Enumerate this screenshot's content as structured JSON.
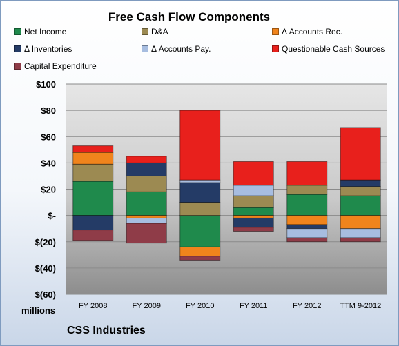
{
  "chart_data": {
    "type": "bar",
    "stacked": true,
    "title": "Free Cash Flow Components",
    "xlabel": "",
    "ylabel": "",
    "unit_label": "millions",
    "company": "CSS Industries",
    "ylim": [
      -60,
      100
    ],
    "yticks": [
      100,
      80,
      60,
      40,
      20,
      0,
      -20,
      -40,
      -60
    ],
    "ytick_labels": [
      "$100",
      "$80",
      "$60",
      "$40",
      "$20",
      "$-",
      "$(20)",
      "$(40)",
      "$(60)"
    ],
    "grid": true,
    "legend_position": "top",
    "categories": [
      "FY 2008",
      "FY 2009",
      "FY 2010",
      "FY 2011",
      "FY 2012",
      "TTM 9-2012"
    ],
    "series": [
      {
        "name": "Net Income",
        "color": "#1f8a4c",
        "values": [
          26,
          18,
          -24,
          6,
          16,
          15
        ]
      },
      {
        "name": "D&A",
        "color": "#9c8a52",
        "values": [
          13,
          12,
          10,
          9,
          7,
          7
        ]
      },
      {
        "name": "Δ Accounts Rec.",
        "color": "#f0841c",
        "values": [
          9,
          -2,
          -7,
          -2,
          -7,
          -10
        ]
      },
      {
        "name": "Δ Inventories",
        "color": "#243b66",
        "values": [
          -11,
          10,
          15,
          -7,
          -3,
          5
        ]
      },
      {
        "name": "Δ Accounts Pay.",
        "color": "#a7bde0",
        "values": [
          0,
          -4,
          2,
          8,
          -7,
          -7
        ]
      },
      {
        "name": "Questionable Cash Sources",
        "color": "#e8201c",
        "values": [
          5,
          5,
          53,
          18,
          18,
          40
        ]
      },
      {
        "name": "Capital Expenditure",
        "color": "#8f3c48",
        "values": [
          -8,
          -15,
          -3,
          -3,
          -3,
          -3
        ]
      }
    ]
  }
}
